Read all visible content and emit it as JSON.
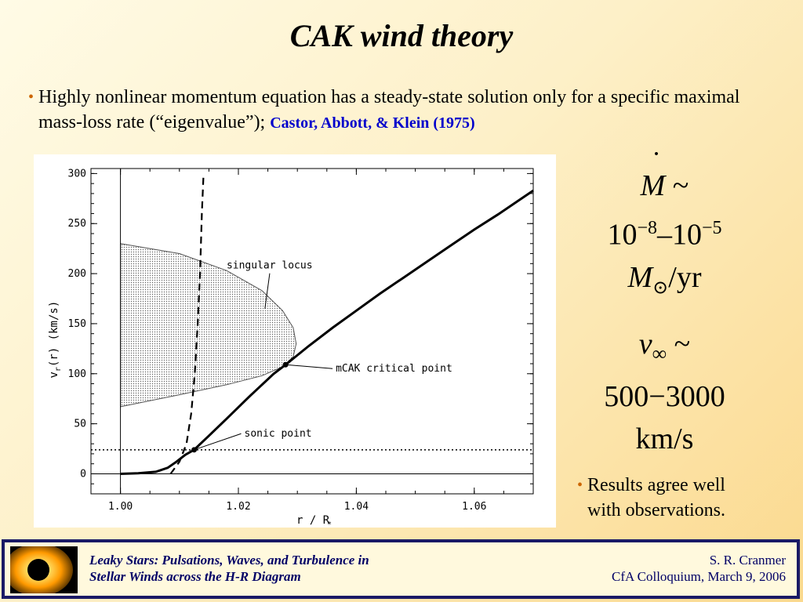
{
  "slide": {
    "title": "CAK wind theory",
    "bullet1_text": "Highly nonlinear momentum equation has a steady-state solution only for a specific maximal mass-loss rate  (“eigenvalue”);",
    "bullet1_cite": "Castor, Abbott, & Klein (1975)",
    "bullet2_line1": "Results agree well",
    "bullet2_line2": "with observations.",
    "accent_color": "#cc6600",
    "cite_color": "#0000cc"
  },
  "formulas": {
    "mdot_symbol": "M",
    "mdot_sim": "~",
    "mdot_range_base1": "10",
    "mdot_range_exp1": "−8",
    "mdot_dash": "–",
    "mdot_range_base2": "10",
    "mdot_range_exp2": "−5",
    "mdot_unit_symbol": "M",
    "mdot_unit_sub": "⊙",
    "mdot_unit_rest": "/yr",
    "vinf_symbol": "v",
    "vinf_sub": "∞",
    "vinf_sim": "~",
    "vinf_range": "500−3000",
    "vinf_unit": "km/s"
  },
  "footer": {
    "left_line1": "Leaky Stars:  Pulsations, Waves, and Turbulence in",
    "left_line2": "Stellar Winds across the H-R Diagram",
    "right_line1": "S. R. Cranmer",
    "right_line2": "CfA Colloquium,  March 9, 2006",
    "border_color": "#1a1a66"
  },
  "chart_data": {
    "type": "line",
    "xlabel": "r / R",
    "xlabel_sub": "*",
    "ylabel": "v",
    "ylabel_sub": "r",
    "ylabel_rest": "(r)   (km/s)",
    "xlim": [
      0.995,
      1.07
    ],
    "ylim": [
      -20,
      305
    ],
    "x_ticks": [
      1.0,
      1.02,
      1.04,
      1.06
    ],
    "x_tick_labels": [
      "1.00",
      "1.02",
      "1.04",
      "1.06"
    ],
    "y_ticks": [
      0,
      50,
      100,
      150,
      200,
      250,
      300
    ],
    "y_tick_labels": [
      "0",
      "50",
      "100",
      "150",
      "200",
      "250",
      "300"
    ],
    "series": [
      {
        "style": "solid-thick",
        "x": [
          1.0,
          1.003,
          1.006,
          1.008,
          1.0095,
          1.011,
          1.0125,
          1.015,
          1.018,
          1.022,
          1.026,
          1.028,
          1.032,
          1.036,
          1.04,
          1.044,
          1.048,
          1.052,
          1.056,
          1.06,
          1.064,
          1.07
        ],
        "y": [
          0,
          0.5,
          2,
          6,
          12,
          19,
          24,
          38,
          55,
          78,
          100,
          109,
          128,
          146,
          163,
          180,
          196,
          212,
          228,
          244,
          259,
          283
        ]
      },
      {
        "style": "dashed",
        "x": [
          1.0085,
          1.01,
          1.0112,
          1.012,
          1.0126,
          1.0131,
          1.0135,
          1.0138,
          1.0141
        ],
        "y": [
          0,
          12,
          30,
          60,
          100,
          150,
          200,
          260,
          300
        ]
      },
      {
        "style": "dotted-horizontal",
        "y_constant": 24
      },
      {
        "style": "thin-horizontal",
        "y_constant": 0
      }
    ],
    "singular_locus": {
      "x": [
        1.0,
        1.01,
        1.018,
        1.024,
        1.0275,
        1.0293,
        1.0298,
        1.0293,
        1.0275,
        1.024,
        1.018,
        1.01,
        1.0
      ],
      "y": [
        230,
        220,
        203,
        183,
        163,
        146,
        130,
        117,
        107,
        98,
        89,
        79,
        67
      ]
    },
    "points": [
      {
        "x": 1.0125,
        "y": 24,
        "label": "sonic point"
      },
      {
        "x": 1.028,
        "y": 109,
        "label": "mCAK critical point"
      }
    ],
    "annotations": [
      {
        "text": "singular locus",
        "x": 1.018,
        "y": 205,
        "arrow_to": [
          1.0245,
          165
        ]
      },
      {
        "text": "mCAK critical point",
        "x": 1.0365,
        "y": 102,
        "arrow_to": [
          1.028,
          109
        ]
      },
      {
        "text": "sonic point",
        "x": 1.021,
        "y": 37,
        "arrow_to": [
          1.0125,
          24
        ]
      }
    ],
    "vertical_line_x": 1.0
  }
}
